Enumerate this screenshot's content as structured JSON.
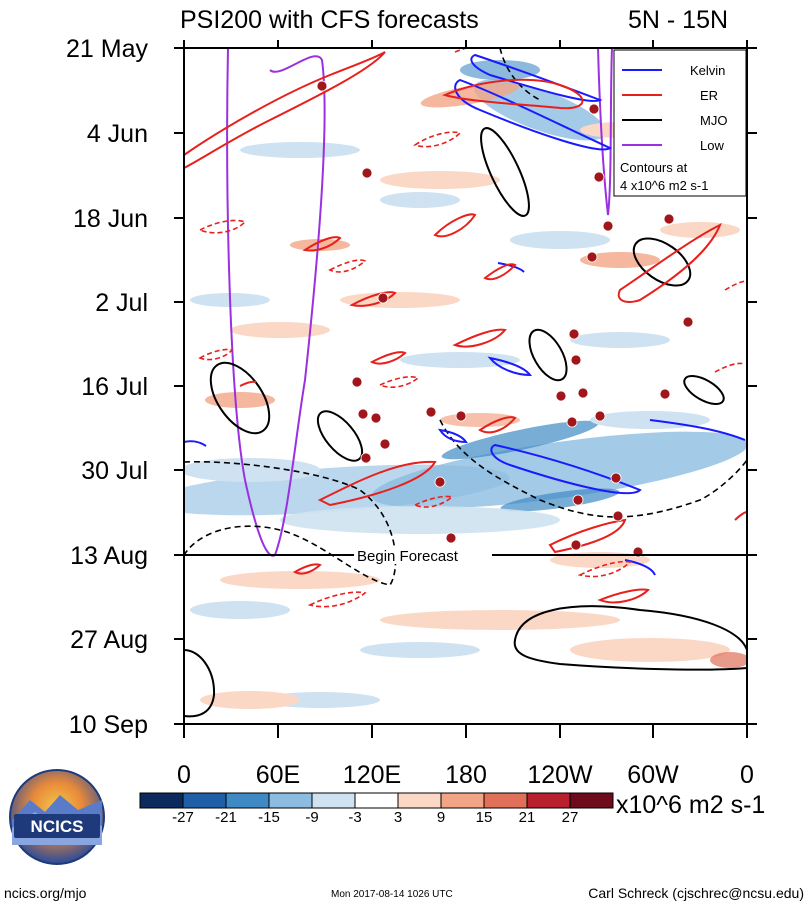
{
  "chart_data": {
    "type": "heatmap",
    "title": "PSI200 with CFS forecasts",
    "subtitle": "5N - 15N",
    "y_ticks": [
      "21 May",
      "4 Jun",
      "18 Jun",
      "2 Jul",
      "16 Jul",
      "30 Jul",
      "13 Aug",
      "27 Aug",
      "10 Sep"
    ],
    "x_ticks": [
      "0",
      "60E",
      "120E",
      "180",
      "120W",
      "60W",
      "0"
    ],
    "forecast_label": "Begin Forecast",
    "forecast_start": "13 Aug",
    "colorbar": {
      "levels": [
        "-27",
        "-21",
        "-15",
        "-9",
        "-3",
        "3",
        "9",
        "15",
        "21",
        "27"
      ],
      "colors": [
        "#0d2a5c",
        "#1f5fa8",
        "#3f8ac4",
        "#8cbde0",
        "#cfe2f1",
        "#ffffff",
        "#fbd8c6",
        "#f2a586",
        "#e0705a",
        "#b8202e",
        "#6e0c1b"
      ],
      "units": "x10^6 m2 s-1"
    },
    "legend": {
      "position": "top-right",
      "entries": [
        {
          "name": "Kelvin",
          "color": "#1a1aff"
        },
        {
          "name": "ER",
          "color": "#e8201c"
        },
        {
          "name": "MJO",
          "color": "#000000"
        },
        {
          "name": "Low",
          "color": "#9b30e0"
        }
      ],
      "note_line1": "Contours at",
      "note_line2": "4 x10^6 m2 s-1"
    }
  },
  "footer": {
    "logo_text": "NCICS",
    "site": "ncics.org/mjo",
    "timestamp": "Mon 2017-08-14 1026 UTC",
    "author": "Carl Schreck (cjschrec@ncsu.edu)"
  }
}
